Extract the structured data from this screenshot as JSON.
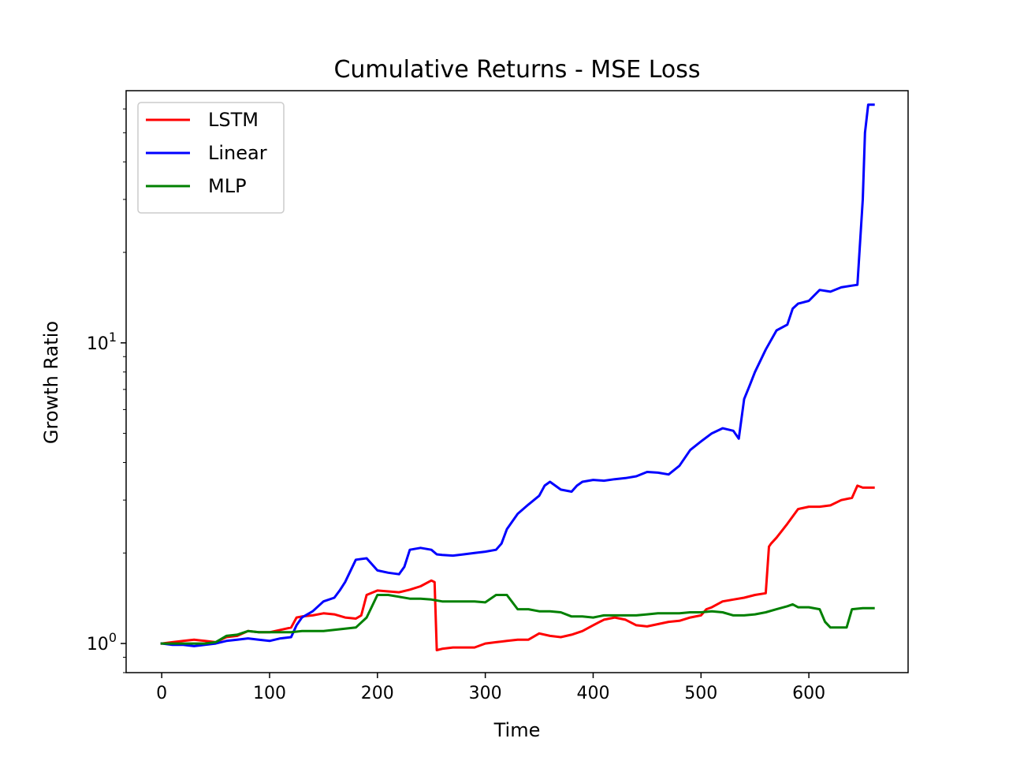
{
  "chart_data": {
    "type": "line",
    "title": "Cumulative Returns - MSE Loss",
    "xlabel": "Time",
    "ylabel": "Growth Ratio",
    "yscale": "log",
    "xlim": [
      -33,
      692
    ],
    "ylim": [
      0.8,
      69
    ],
    "grid": false,
    "legend_position": "top-left",
    "x_ticks": [
      0,
      100,
      200,
      300,
      400,
      500,
      600
    ],
    "y_ticks": [
      1,
      10
    ],
    "y_tick_labels": [
      {
        "base": "10",
        "exp": "0"
      },
      {
        "base": "10",
        "exp": "1"
      }
    ],
    "series": [
      {
        "name": "LSTM",
        "color": "#ff0000",
        "x": [
          0,
          10,
          20,
          30,
          40,
          50,
          60,
          70,
          80,
          90,
          100,
          110,
          120,
          125,
          130,
          140,
          150,
          160,
          170,
          180,
          185,
          190,
          200,
          210,
          220,
          230,
          240,
          250,
          253,
          255,
          260,
          270,
          280,
          290,
          300,
          310,
          320,
          330,
          340,
          350,
          360,
          370,
          380,
          390,
          400,
          410,
          420,
          430,
          440,
          450,
          460,
          470,
          480,
          490,
          500,
          505,
          510,
          520,
          530,
          540,
          550,
          560,
          563,
          565,
          570,
          580,
          590,
          600,
          610,
          620,
          630,
          640,
          645,
          650,
          660
        ],
        "y": [
          1.0,
          1.01,
          1.02,
          1.03,
          1.02,
          1.01,
          1.05,
          1.06,
          1.1,
          1.09,
          1.09,
          1.11,
          1.13,
          1.22,
          1.23,
          1.24,
          1.26,
          1.25,
          1.22,
          1.21,
          1.24,
          1.45,
          1.5,
          1.49,
          1.48,
          1.51,
          1.55,
          1.62,
          1.6,
          0.95,
          0.96,
          0.97,
          0.97,
          0.97,
          1.0,
          1.01,
          1.02,
          1.03,
          1.03,
          1.08,
          1.06,
          1.05,
          1.07,
          1.1,
          1.15,
          1.2,
          1.22,
          1.2,
          1.15,
          1.14,
          1.16,
          1.18,
          1.19,
          1.22,
          1.24,
          1.3,
          1.32,
          1.38,
          1.4,
          1.42,
          1.45,
          1.47,
          2.1,
          2.15,
          2.25,
          2.5,
          2.8,
          2.85,
          2.85,
          2.88,
          3.0,
          3.05,
          3.35,
          3.3,
          3.3
        ]
      },
      {
        "name": "Linear",
        "color": "#0000ff",
        "x": [
          0,
          10,
          20,
          30,
          40,
          50,
          60,
          70,
          80,
          90,
          100,
          105,
          110,
          120,
          125,
          130,
          140,
          150,
          160,
          165,
          170,
          180,
          190,
          200,
          210,
          220,
          225,
          230,
          240,
          250,
          255,
          260,
          270,
          280,
          290,
          300,
          310,
          315,
          320,
          330,
          340,
          350,
          355,
          360,
          370,
          380,
          385,
          390,
          400,
          410,
          420,
          430,
          440,
          450,
          460,
          470,
          480,
          490,
          500,
          510,
          520,
          530,
          535,
          540,
          545,
          550,
          560,
          570,
          580,
          585,
          590,
          600,
          610,
          620,
          630,
          640,
          645,
          650,
          652,
          655,
          660
        ],
        "y": [
          1.0,
          0.99,
          0.99,
          0.98,
          0.99,
          1.0,
          1.02,
          1.03,
          1.04,
          1.03,
          1.02,
          1.03,
          1.04,
          1.05,
          1.15,
          1.22,
          1.28,
          1.38,
          1.42,
          1.5,
          1.6,
          1.9,
          1.92,
          1.75,
          1.72,
          1.7,
          1.8,
          2.05,
          2.08,
          2.05,
          1.98,
          1.97,
          1.96,
          1.98,
          2.0,
          2.02,
          2.05,
          2.15,
          2.4,
          2.7,
          2.9,
          3.1,
          3.35,
          3.45,
          3.25,
          3.2,
          3.35,
          3.45,
          3.5,
          3.48,
          3.52,
          3.55,
          3.6,
          3.72,
          3.7,
          3.65,
          3.9,
          4.4,
          4.7,
          5.0,
          5.2,
          5.1,
          4.8,
          6.5,
          7.2,
          8.0,
          9.5,
          11.0,
          11.5,
          13.0,
          13.5,
          13.8,
          15.0,
          14.8,
          15.3,
          15.5,
          15.6,
          30.0,
          50.0,
          62.0,
          62.0
        ]
      },
      {
        "name": "MLP",
        "color": "#008000",
        "x": [
          0,
          10,
          20,
          30,
          40,
          50,
          60,
          70,
          80,
          90,
          100,
          110,
          120,
          130,
          140,
          150,
          160,
          170,
          180,
          190,
          200,
          210,
          220,
          230,
          240,
          250,
          260,
          270,
          280,
          290,
          300,
          310,
          320,
          330,
          340,
          350,
          360,
          370,
          380,
          390,
          400,
          410,
          420,
          430,
          440,
          450,
          460,
          470,
          480,
          490,
          500,
          510,
          520,
          530,
          540,
          550,
          560,
          570,
          580,
          585,
          590,
          600,
          610,
          615,
          620,
          630,
          635,
          640,
          650,
          660
        ],
        "y": [
          1.0,
          1.0,
          1.0,
          1.0,
          1.0,
          1.01,
          1.06,
          1.07,
          1.1,
          1.09,
          1.09,
          1.09,
          1.09,
          1.1,
          1.1,
          1.1,
          1.11,
          1.12,
          1.13,
          1.22,
          1.45,
          1.45,
          1.43,
          1.41,
          1.41,
          1.4,
          1.38,
          1.38,
          1.38,
          1.38,
          1.37,
          1.45,
          1.45,
          1.3,
          1.3,
          1.28,
          1.28,
          1.27,
          1.23,
          1.23,
          1.22,
          1.24,
          1.24,
          1.24,
          1.24,
          1.25,
          1.26,
          1.26,
          1.26,
          1.27,
          1.27,
          1.28,
          1.27,
          1.24,
          1.24,
          1.25,
          1.27,
          1.3,
          1.33,
          1.35,
          1.32,
          1.32,
          1.3,
          1.18,
          1.13,
          1.13,
          1.13,
          1.3,
          1.31,
          1.31
        ]
      }
    ]
  }
}
